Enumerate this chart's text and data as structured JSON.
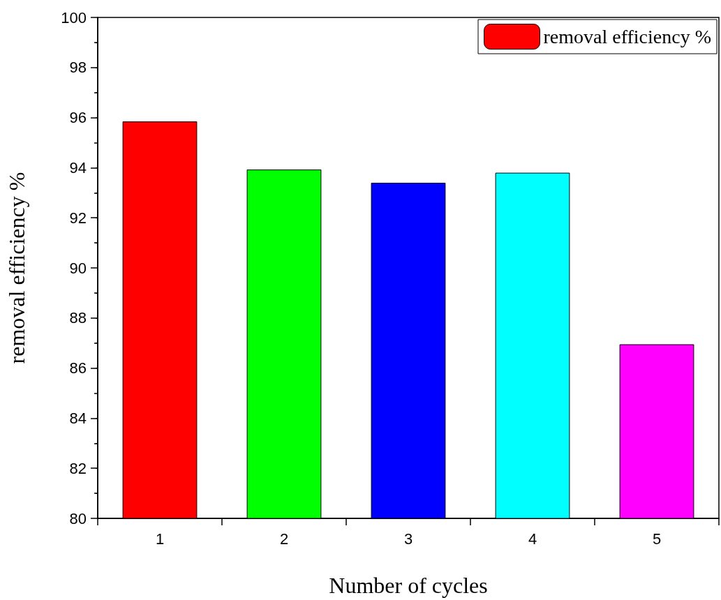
{
  "chart_data": {
    "type": "bar",
    "xlabel": "Number of cycles",
    "ylabel": "removal efficiency %",
    "categories": [
      "1",
      "2",
      "3",
      "4",
      "5"
    ],
    "series": [
      {
        "name": "removal efficiency %",
        "color": "#ff0000",
        "colors": [
          "#ff0000",
          "#00ff00",
          "#0000ff",
          "#00ffff",
          "#ff00ff"
        ],
        "values": [
          95.85,
          93.93,
          93.4,
          93.8,
          86.95
        ]
      }
    ],
    "ylim": [
      80,
      100
    ],
    "yticks": [
      80,
      82,
      84,
      86,
      88,
      90,
      92,
      94,
      96,
      98,
      100
    ],
    "grid": false,
    "legend": "top right"
  }
}
